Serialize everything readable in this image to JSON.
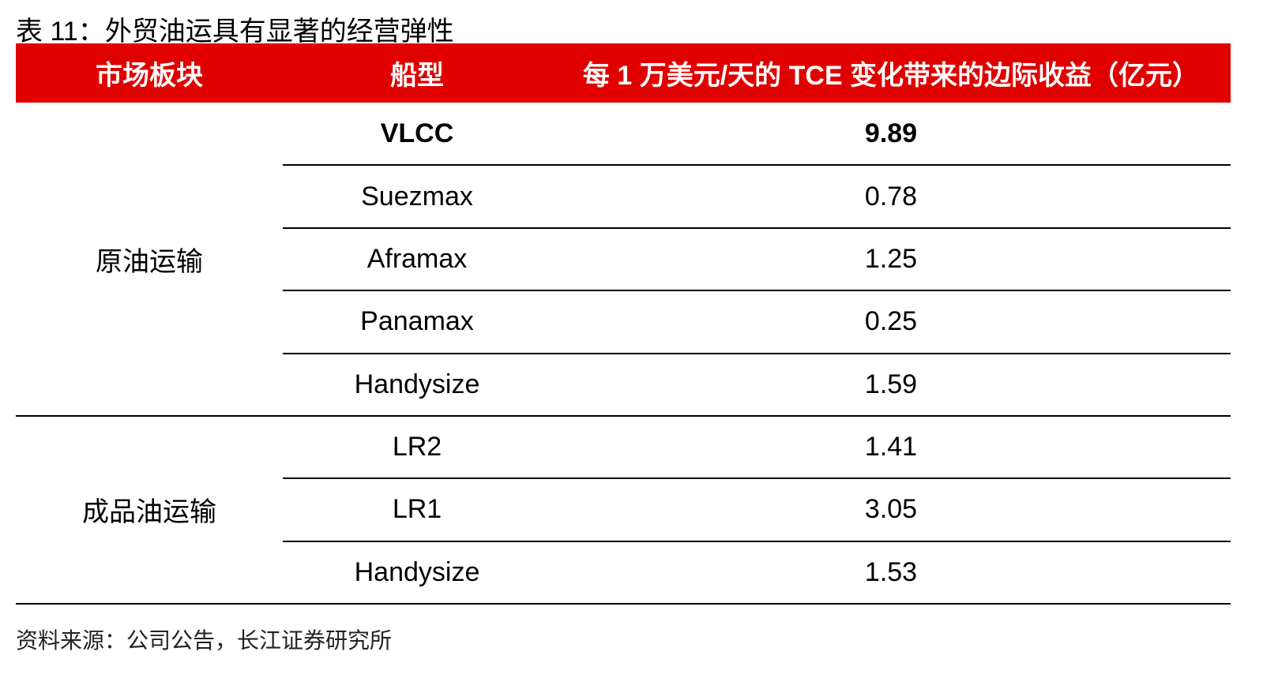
{
  "title": "表 11：外贸油运具有显著的经营弹性",
  "table": {
    "header": [
      "市场板块",
      "船型",
      "每 1 万美元/天的 TCE 变化带来的边际收益（亿元）"
    ],
    "groups": [
      {
        "name": "原油运输",
        "rows": [
          [
            "VLCC",
            "9.89"
          ],
          [
            "Suezmax",
            "0.78"
          ],
          [
            "Aframax",
            "1.25"
          ],
          [
            "Panamax",
            "0.25"
          ],
          [
            "Handysize",
            "1.59"
          ]
        ]
      },
      {
        "name": "成品油运输",
        "rows": [
          [
            "LR2",
            "1.41"
          ],
          [
            "LR1",
            "3.05"
          ],
          [
            "Handysize",
            "1.53"
          ]
        ]
      }
    ]
  },
  "source": "资料来源：公司公告，长江证券研究所"
}
